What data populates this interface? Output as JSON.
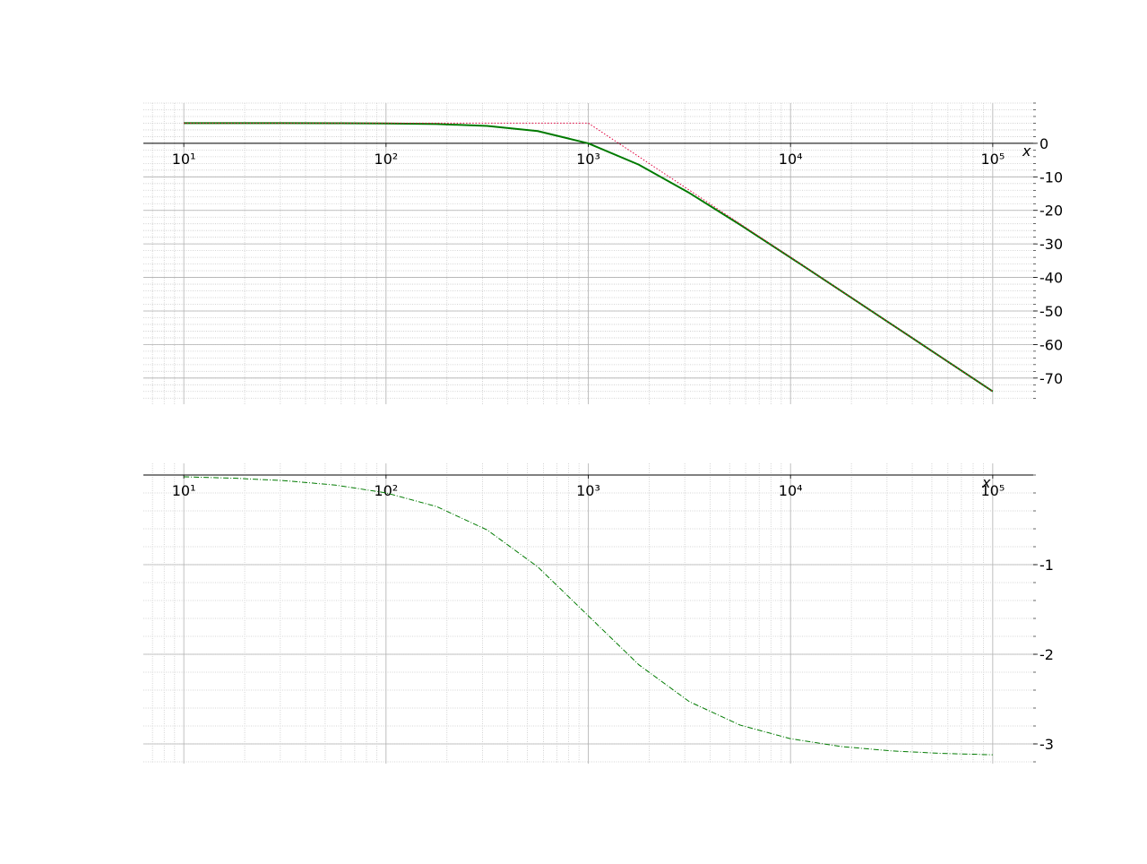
{
  "chart_data": [
    {
      "type": "line",
      "xscale": "log",
      "xlabel": "x",
      "xlim": [
        6.31,
        158489
      ],
      "xticks": [
        {
          "value": 10,
          "label": "10¹"
        },
        {
          "value": 100,
          "label": "10²"
        },
        {
          "value": 1000,
          "label": "10³"
        },
        {
          "value": 10000,
          "label": "10⁴"
        },
        {
          "value": 100000,
          "label": "10⁵"
        }
      ],
      "ylim": [
        -77.8,
        12
      ],
      "yticks": [
        0,
        -10,
        -20,
        -30,
        -40,
        -50,
        -60,
        -70
      ],
      "grid": true,
      "minor_grid": true,
      "series": [
        {
          "color": "#007a00",
          "linestyle": "solid",
          "linewidth": 2,
          "x": [
            10,
            17.78,
            31.62,
            56.23,
            100,
            177.8,
            316.2,
            562.3,
            1000,
            1778,
            3162,
            5623,
            10000,
            17783,
            31623,
            56234,
            100000
          ],
          "values": [
            6.02,
            6.018,
            6.012,
            5.993,
            5.934,
            5.75,
            5.193,
            3.635,
            0,
            -6.366,
            -14.807,
            -24.25,
            -34.066,
            -44.006,
            -53.988,
            -63.982,
            -73.98
          ]
        },
        {
          "color": "#e0003c",
          "linestyle": "dotted",
          "linewidth": 1,
          "x": [
            10,
            1000,
            100000
          ],
          "values": [
            6.02,
            6.02,
            -73.98
          ]
        }
      ]
    },
    {
      "type": "line",
      "xscale": "log",
      "xlabel": "x",
      "xlim": [
        6.31,
        158489
      ],
      "xticks": [
        {
          "value": 10,
          "label": "10¹"
        },
        {
          "value": 100,
          "label": "10²"
        },
        {
          "value": 1000,
          "label": "10³"
        },
        {
          "value": 10000,
          "label": "10⁴"
        },
        {
          "value": 100000,
          "label": "10⁵"
        }
      ],
      "ylim": [
        -3.22,
        0.13
      ],
      "yticks": [
        -1,
        -2,
        -3
      ],
      "grid": true,
      "minor_grid": true,
      "series": [
        {
          "color": "#007a00",
          "linestyle": "dashdot",
          "linewidth": 1,
          "x": [
            10,
            17.78,
            31.62,
            56.23,
            100,
            177.8,
            316.2,
            562.3,
            1000,
            1778,
            3162,
            5623,
            10000,
            17783,
            31623,
            56234,
            100000
          ],
          "values": [
            -0.02,
            -0.0356,
            -0.0632,
            -0.1123,
            -0.1993,
            -0.352,
            -0.6126,
            -1.0244,
            -1.5708,
            -2.117,
            -2.529,
            -2.7896,
            -2.9423,
            -3.0292,
            -3.0784,
            -3.106,
            -3.1216
          ]
        }
      ]
    }
  ]
}
